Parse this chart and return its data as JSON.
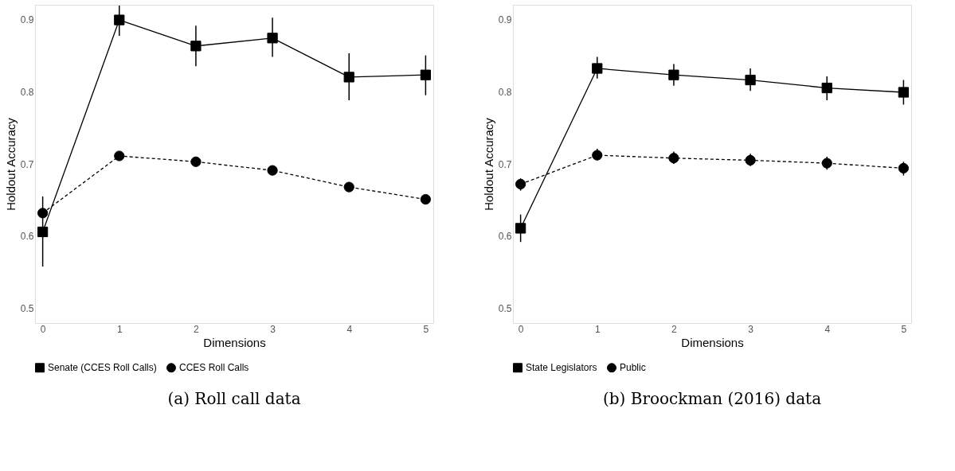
{
  "chart_data": [
    {
      "type": "line",
      "title": "(a) Roll call data",
      "xlabel": "Dimensions",
      "ylabel": "Holdout Accuracy",
      "x": [
        0,
        1,
        2,
        3,
        4,
        5
      ],
      "xlim": [
        -0.1,
        5.1
      ],
      "xticks": [
        0,
        1,
        2,
        3,
        4,
        5
      ],
      "ylim": [
        0.48,
        0.92
      ],
      "yticks": [
        0.5,
        0.6,
        0.7,
        0.8,
        0.9
      ],
      "grid": false,
      "legend": "bottom",
      "series": [
        {
          "name": "Senate (CCES Roll Calls)",
          "color": "#000000",
          "marker": "square",
          "line_style": "solid",
          "values": [
            0.606,
            0.899,
            0.863,
            0.874,
            0.82,
            0.823
          ],
          "errors": [
            [
              0.558,
              0.655
            ],
            [
              0.877,
              0.919
            ],
            [
              0.835,
              0.891
            ],
            [
              0.848,
              0.902
            ],
            [
              0.788,
              0.853
            ],
            [
              0.795,
              0.85
            ]
          ]
        },
        {
          "name": "CCES Roll Calls",
          "color": "#000000",
          "marker": "circle",
          "line_style": "dashed",
          "values": [
            0.632,
            0.711,
            0.703,
            0.691,
            0.668,
            0.651
          ]
        }
      ]
    },
    {
      "type": "line",
      "title": "(b) Broockman (2016) data",
      "xlabel": "Dimensions",
      "ylabel": "Holdout Accuracy",
      "x": [
        0,
        1,
        2,
        3,
        4,
        5
      ],
      "xlim": [
        -0.1,
        5.1
      ],
      "xticks": [
        0,
        1,
        2,
        3,
        4,
        5
      ],
      "ylim": [
        0.48,
        0.92
      ],
      "yticks": [
        0.5,
        0.6,
        0.7,
        0.8,
        0.9
      ],
      "grid": false,
      "legend": "bottom",
      "series": [
        {
          "name": "State Legislators",
          "color": "#000000",
          "marker": "square",
          "line_style": "solid",
          "values": [
            0.611,
            0.832,
            0.823,
            0.816,
            0.805,
            0.799
          ],
          "errors": [
            [
              0.592,
              0.63
            ],
            [
              0.818,
              0.848
            ],
            [
              0.808,
              0.838
            ],
            [
              0.801,
              0.832
            ],
            [
              0.788,
              0.821
            ],
            [
              0.782,
              0.816
            ]
          ]
        },
        {
          "name": "Public",
          "color": "#000000",
          "marker": "circle",
          "line_style": "dashed",
          "values": [
            0.672,
            0.712,
            0.708,
            0.705,
            0.701,
            0.694
          ],
          "errors": [
            [
              0.663,
              0.68
            ],
            [
              0.705,
              0.721
            ],
            [
              0.7,
              0.717
            ],
            [
              0.697,
              0.714
            ],
            [
              0.692,
              0.71
            ],
            [
              0.684,
              0.703
            ]
          ]
        }
      ]
    }
  ]
}
